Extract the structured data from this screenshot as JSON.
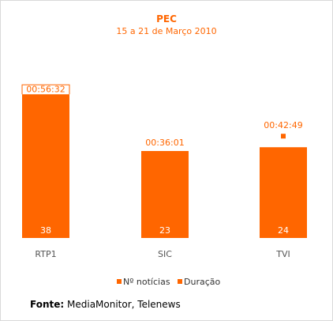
{
  "chart_data": {
    "type": "bar",
    "title": "PEC",
    "subtitle": "15 a 21 de Março 2010",
    "categories": [
      "RTP1",
      "SIC",
      "TVI"
    ],
    "series": [
      {
        "name": "Nº notícias",
        "values": [
          38,
          23,
          24
        ]
      },
      {
        "name": "Duração",
        "values": [
          "00:56:32",
          "00:36:01",
          "00:42:49"
        ],
        "seconds": [
          3392,
          2161,
          2569
        ]
      }
    ],
    "ylim": [
      0,
      46
    ],
    "legend_position": "bottom",
    "colors": {
      "bar": "#ff6600",
      "bar_stroke": "#ff6600",
      "duration_label": "#ff6600",
      "text": "#555555"
    }
  },
  "source": {
    "label": "Fonte:",
    "text": "MediaMonitor, Telenews"
  }
}
